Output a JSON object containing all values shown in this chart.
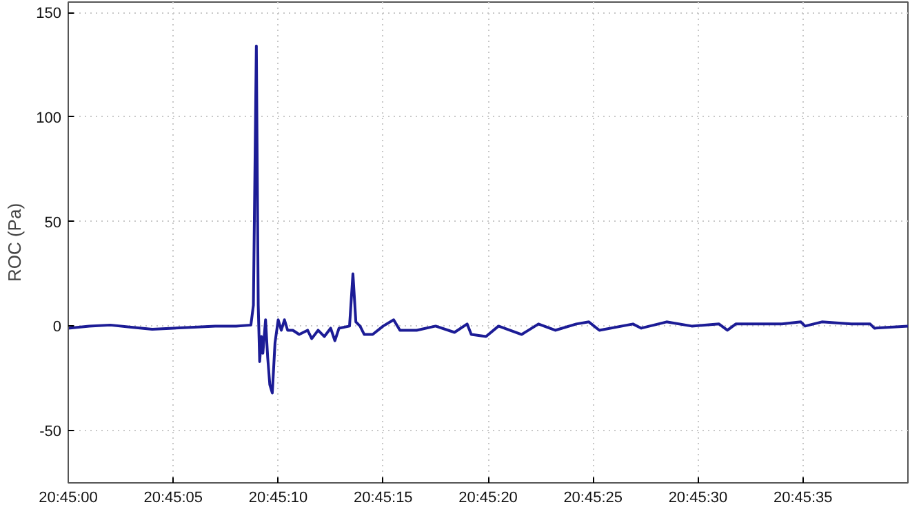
{
  "chart_data": {
    "type": "line",
    "ylabel": "ROC (Pa)",
    "xlim": [
      20.75,
      20.761111
    ],
    "ylim": [
      -75,
      155
    ],
    "xticks": [
      {
        "value": 20.75,
        "label": "20:45:00"
      },
      {
        "value": 20.751389,
        "label": "20:45:05"
      },
      {
        "value": 20.752778,
        "label": "20:45:10"
      },
      {
        "value": 20.754167,
        "label": "20:45:15"
      },
      {
        "value": 20.755556,
        "label": "20:45:20"
      },
      {
        "value": 20.756944,
        "label": "20:45:25"
      },
      {
        "value": 20.758333,
        "label": "20:45:30"
      },
      {
        "value": 20.759722,
        "label": "20:45:35"
      }
    ],
    "yticks": [
      -50,
      0,
      50,
      100,
      150
    ],
    "grid": true,
    "line_style": "solid",
    "x": [
      20.75,
      20.750278,
      20.750556,
      20.750833,
      20.751111,
      20.751389,
      20.751667,
      20.751944,
      20.752222,
      20.752417,
      20.75245,
      20.752489,
      20.752514,
      20.752533,
      20.752556,
      20.752575,
      20.752611,
      20.752639,
      20.752667,
      20.7527,
      20.752736,
      20.752778,
      20.752819,
      20.752861,
      20.752903,
      20.752972,
      20.753056,
      20.753167,
      20.753222,
      20.753306,
      20.753389,
      20.753472,
      20.753528,
      20.753583,
      20.753722,
      20.753767,
      20.753806,
      20.753861,
      20.753917,
      20.754028,
      20.754167,
      20.754306,
      20.754389,
      20.754611,
      20.754861,
      20.755111,
      20.755278,
      20.755333,
      20.755528,
      20.755694,
      20.756,
      20.756222,
      20.756444,
      20.756722,
      20.756889,
      20.757028,
      20.757472,
      20.757583,
      20.757917,
      20.75825,
      20.758611,
      20.758722,
      20.758833,
      20.759444,
      20.759694,
      20.75975,
      20.759972,
      20.760361,
      20.760611,
      20.760667,
      20.761111
    ],
    "series": [
      {
        "color": "#1c1c96",
        "values": [
          -1,
          0,
          0.5,
          -0.5,
          -1.5,
          -1,
          -0.5,
          0,
          0,
          0.5,
          10,
          134,
          10,
          -17,
          -5,
          -13,
          3,
          -15,
          -28,
          -32,
          -8,
          3,
          -2,
          3,
          -2,
          -2,
          -4,
          -2,
          -6,
          -2,
          -5,
          -1,
          -7,
          -1,
          0,
          25,
          2,
          0,
          -4,
          -4,
          0,
          3,
          -2,
          -2,
          0,
          -3,
          1,
          -4,
          -5,
          0,
          -4,
          1,
          -2,
          1,
          2,
          -2,
          1,
          -1,
          2,
          0,
          1,
          -2,
          1,
          1,
          2,
          0,
          2,
          1,
          1,
          -1,
          0
        ]
      }
    ]
  }
}
